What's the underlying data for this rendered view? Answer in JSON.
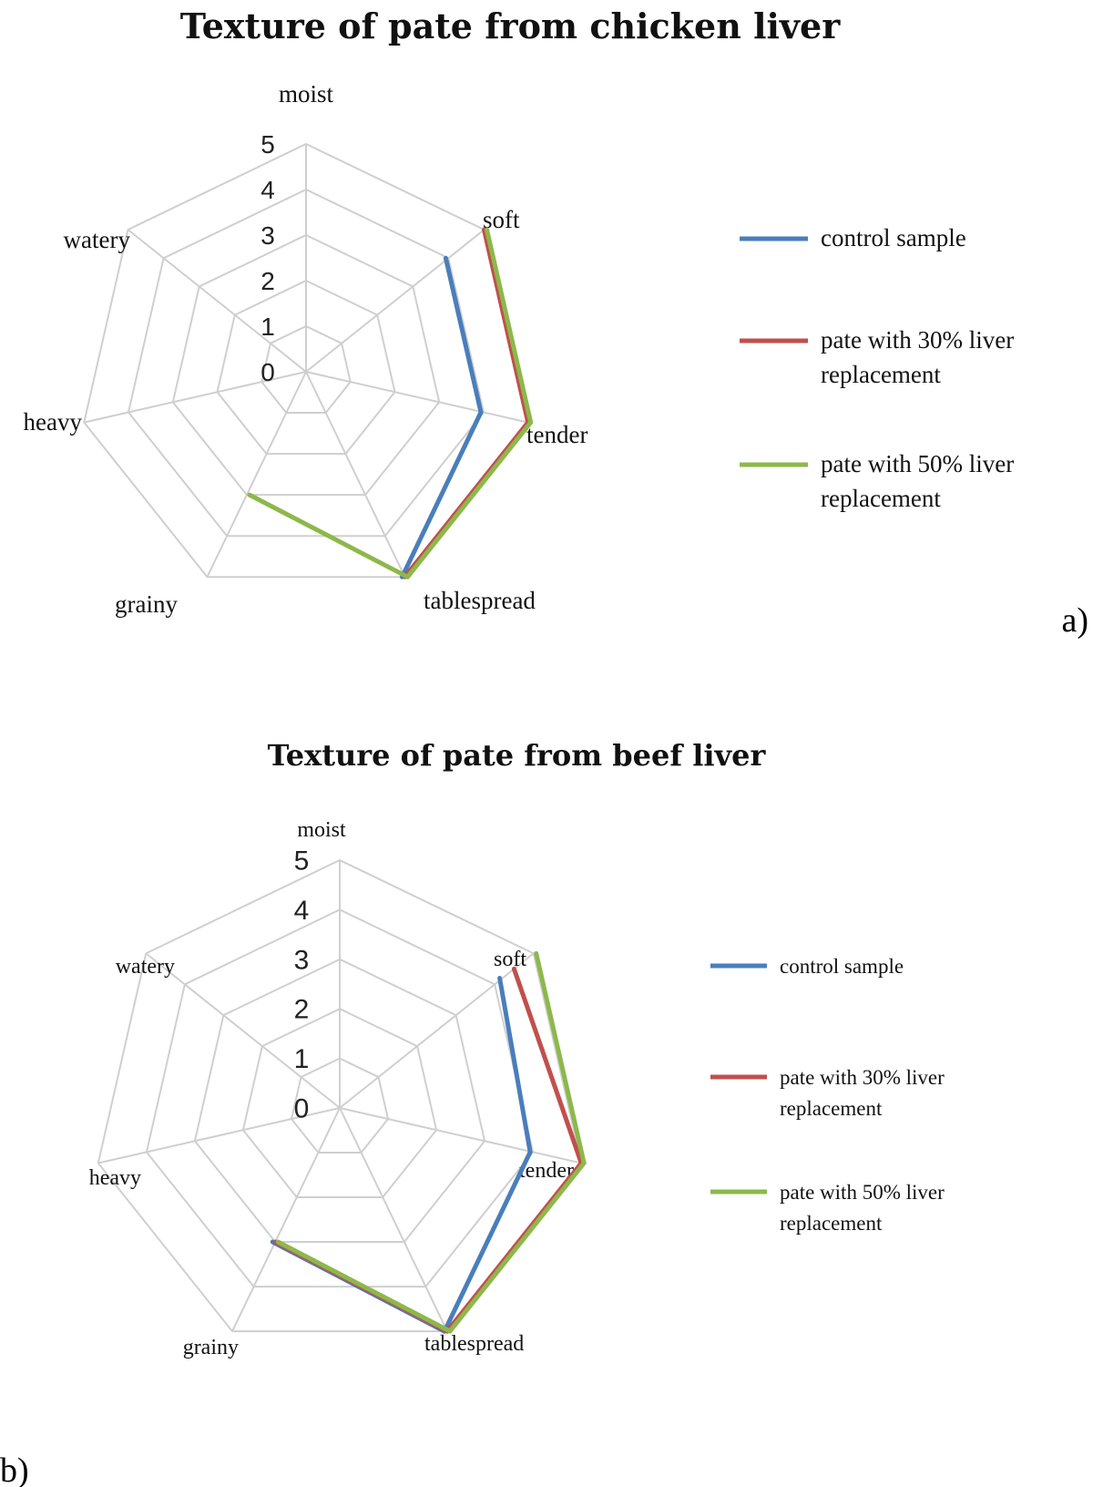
{
  "chart_data": [
    {
      "type": "radar",
      "title": "Texture of pate from chicken liver",
      "panel_label": "a)",
      "axes": [
        "moist",
        "soft",
        "tender",
        "tablespread",
        "grainy",
        "heavy",
        "watery"
      ],
      "ticks": [
        "0",
        "1",
        "2",
        "3",
        "4",
        "5"
      ],
      "range": [
        0,
        5
      ],
      "series": [
        {
          "name": "control sample",
          "color": "#4a7ebb",
          "values": [
            0,
            4,
            4,
            5,
            0,
            0,
            0
          ]
        },
        {
          "name": "pate with 30% liver replacement",
          "color": "#c0504d",
          "values": [
            0,
            5,
            5,
            5,
            0,
            0,
            0
          ]
        },
        {
          "name": "pate with 50% liver replacement",
          "color": "#8db84a",
          "values": [
            0,
            5,
            5,
            5,
            3,
            0,
            0
          ]
        }
      ]
    },
    {
      "type": "radar",
      "title": "Texture of pate from beef liver",
      "panel_label": "b)",
      "axes": [
        "moist",
        "soft",
        "tender",
        "tablespread",
        "grainy",
        "heavy",
        "watery"
      ],
      "ticks": [
        "0",
        "1",
        "2",
        "3",
        "4",
        "5"
      ],
      "range": [
        0,
        5
      ],
      "series": [
        {
          "name": "control sample",
          "color": "#4a7ebb",
          "values": [
            0,
            4.2,
            4,
            5,
            3,
            0,
            0
          ]
        },
        {
          "name": "pate with 30% liver replacement",
          "color": "#c0504d",
          "values": [
            0,
            4.5,
            5,
            5,
            3,
            0,
            0
          ]
        },
        {
          "name": "pate with 50% liver replacement",
          "color": "#8db84a",
          "values": [
            0,
            5,
            5,
            5,
            3,
            0,
            0
          ]
        }
      ]
    }
  ]
}
